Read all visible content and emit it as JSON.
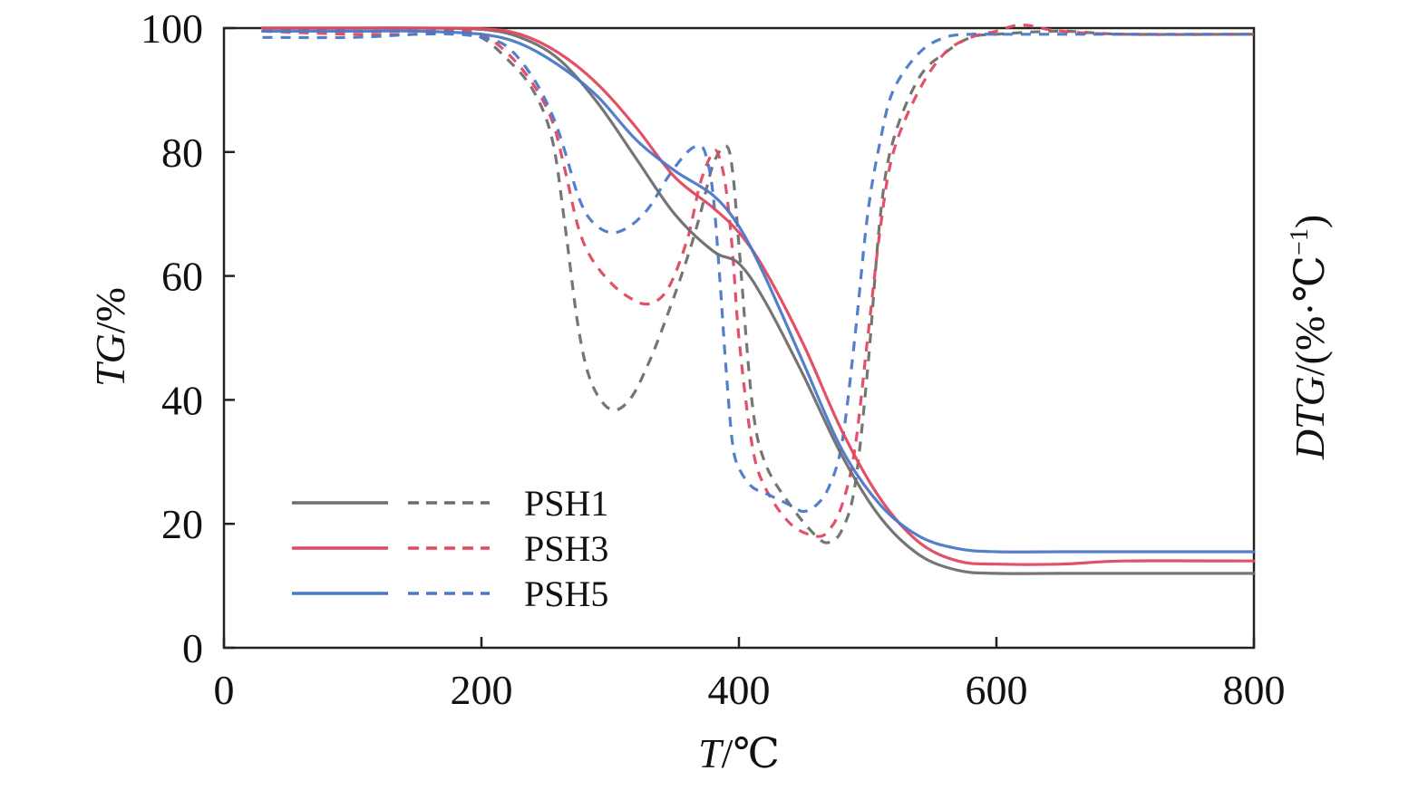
{
  "chart_data": {
    "type": "line",
    "x_axis": {
      "label_var": "T",
      "label_unit": "/℃",
      "range": [
        0,
        800
      ],
      "ticks": [
        "0",
        "200",
        "400",
        "600",
        "800"
      ]
    },
    "y_axis_left": {
      "label_var": "TG",
      "label_unit": "/%",
      "range": [
        0,
        100
      ],
      "ticks": [
        "0",
        "20",
        "40",
        "60",
        "80",
        "100"
      ]
    },
    "y_axis_right": {
      "label_var": "DTG",
      "label_unit": "/(%·℃",
      "label_sup": "−1",
      "label_close": ")",
      "ticks": []
    },
    "grid": false,
    "legend": {
      "placement": "lower-left",
      "entries": [
        "PSH1",
        "PSH3",
        "PSH5"
      ]
    },
    "series": [
      {
        "name": "PSH1",
        "curve": "TG",
        "style": "solid",
        "color": "#6e6e6e",
        "x": [
          30,
          100,
          150,
          200,
          230,
          260,
          290,
          320,
          350,
          380,
          400,
          420,
          450,
          480,
          510,
          540,
          570,
          600,
          650,
          700,
          800
        ],
        "y": [
          100,
          100,
          100,
          99.8,
          98.5,
          95,
          88,
          79,
          70,
          64,
          62,
          56,
          44,
          31,
          21,
          15,
          12.5,
          12,
          12,
          12,
          12
        ]
      },
      {
        "name": "PSH3",
        "curve": "TG",
        "style": "solid",
        "color": "#e0485f",
        "x": [
          30,
          100,
          150,
          200,
          230,
          260,
          290,
          320,
          350,
          380,
          400,
          420,
          450,
          480,
          510,
          540,
          570,
          600,
          650,
          700,
          800
        ],
        "y": [
          100,
          100,
          100,
          99.9,
          99,
          96,
          91,
          84,
          76,
          71,
          67,
          61,
          49,
          35,
          24,
          17,
          14,
          13.5,
          13.5,
          14,
          14
        ]
      },
      {
        "name": "PSH5",
        "curve": "TG",
        "style": "solid",
        "color": "#4a78c8",
        "x": [
          30,
          100,
          150,
          200,
          230,
          260,
          290,
          320,
          350,
          380,
          400,
          420,
          450,
          480,
          510,
          540,
          570,
          600,
          650,
          700,
          800
        ],
        "y": [
          99.5,
          99.5,
          99.5,
          99,
          97.5,
          94,
          89,
          82,
          77,
          73,
          68,
          60,
          46,
          32,
          23,
          18,
          16,
          15.5,
          15.5,
          15.5,
          15.5
        ]
      },
      {
        "name": "PSH1",
        "curve": "DTG",
        "style": "dashed",
        "color": "#6e6e6e",
        "x": [
          30,
          100,
          150,
          180,
          200,
          220,
          240,
          255,
          265,
          275,
          285,
          300,
          315,
          330,
          345,
          360,
          370,
          380,
          390,
          395,
          400,
          410,
          420,
          440,
          460,
          470,
          480,
          490,
          500,
          510,
          520,
          540,
          560,
          580,
          600,
          650,
          700,
          800
        ],
        "y": [
          100,
          99.5,
          99.5,
          99.5,
          98.5,
          95,
          90,
          82,
          68,
          52,
          43,
          38.5,
          40,
          46,
          54,
          63,
          70,
          78,
          81,
          77,
          65,
          40,
          30,
          23,
          18,
          17,
          19,
          26,
          45,
          70,
          82,
          92,
          96,
          98.5,
          99,
          99.5,
          99,
          99
        ]
      },
      {
        "name": "PSH3",
        "curve": "DTG",
        "style": "dashed",
        "color": "#e0485f",
        "x": [
          30,
          100,
          150,
          180,
          200,
          220,
          240,
          255,
          265,
          275,
          285,
          300,
          315,
          330,
          345,
          360,
          370,
          380,
          385,
          390,
          395,
          400,
          410,
          420,
          440,
          460,
          470,
          480,
          490,
          500,
          510,
          520,
          540,
          560,
          580,
          600,
          620,
          650,
          700,
          800
        ],
        "y": [
          99.5,
          99,
          99,
          99.5,
          99,
          96,
          91,
          85,
          77,
          68,
          63,
          59,
          56.5,
          55.5,
          58,
          66,
          75,
          80,
          79,
          74,
          64,
          50,
          33,
          26,
          20,
          18,
          19,
          23,
          32,
          50,
          68,
          80,
          90,
          96,
          98.5,
          99.5,
          100.5,
          99.5,
          99,
          99
        ]
      },
      {
        "name": "PSH5",
        "curve": "DTG",
        "style": "dashed",
        "color": "#4a78c8",
        "x": [
          30,
          100,
          150,
          180,
          200,
          220,
          240,
          255,
          265,
          275,
          285,
          300,
          315,
          330,
          345,
          360,
          370,
          375,
          380,
          385,
          390,
          395,
          400,
          410,
          420,
          440,
          450,
          460,
          470,
          480,
          490,
          500,
          510,
          520,
          540,
          560,
          580,
          600,
          650,
          700,
          800
        ],
        "y": [
          98.5,
          98.5,
          99,
          99,
          98.5,
          97,
          92,
          86,
          80,
          73,
          69,
          67,
          68,
          71,
          76,
          80,
          81,
          79,
          73,
          60,
          45,
          33,
          29,
          26,
          25,
          23,
          22,
          23,
          26,
          33,
          50,
          70,
          82,
          90,
          96,
          98.5,
          99,
          99,
          99,
          99,
          99
        ]
      }
    ]
  }
}
